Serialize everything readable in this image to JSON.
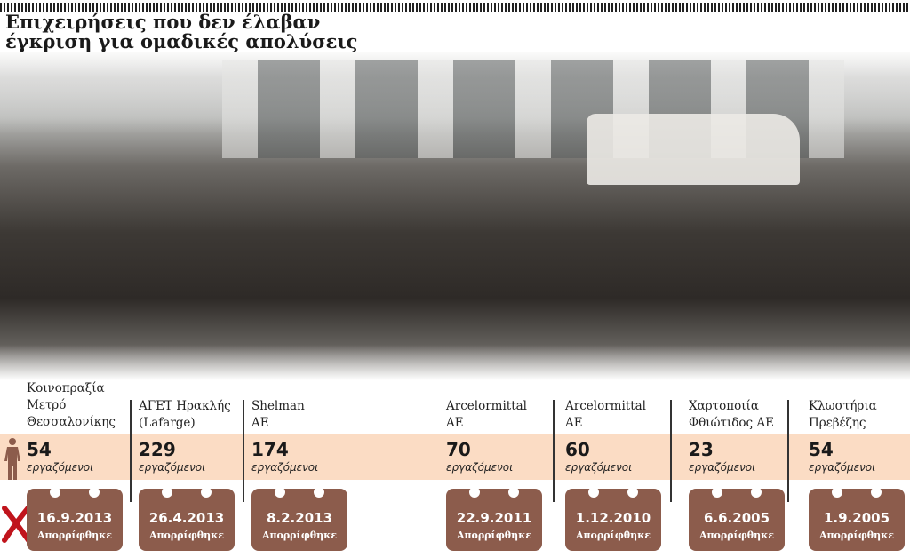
{
  "title": {
    "line1": "Επιχειρήσεις που δεν έλαβαν",
    "line2": "έγκριση για ομαδικές απολύσεις"
  },
  "colors": {
    "band": "#fbdcc4",
    "calendar": "#8c5c4c",
    "reject_mark": "#c0141c",
    "person_icon": "#8c5c4c"
  },
  "icons": {
    "person": "person-icon",
    "reject": "x-mark-icon"
  },
  "companies": [
    {
      "name": [
        "Κοινοπραξία",
        "Μετρό",
        "Θεσσαλονίκης"
      ],
      "workers": "54",
      "unit": "εργαζόμενοι",
      "date": "16.9.2013",
      "status": "Απορρίφθηκε"
    },
    {
      "name": [
        "ΑΓΕΤ Ηρακλής",
        "(Lafarge)"
      ],
      "workers": "229",
      "unit": "εργαζόμενοι",
      "date": "26.4.2013",
      "status": "Απορρίφθηκε"
    },
    {
      "name": [
        "Shelman",
        "ΑΕ"
      ],
      "workers": "174",
      "unit": "εργαζόμενοι",
      "date": "8.2.2013",
      "status": "Απορρίφθηκε"
    },
    {
      "name": [
        "Arcelormittal",
        "ΑΕ"
      ],
      "workers": "70",
      "unit": "εργαζόμενοι",
      "date": "22.9.2011",
      "status": "Απορρίφθηκε"
    },
    {
      "name": [
        "Arcelormittal",
        "ΑΕ"
      ],
      "workers": "60",
      "unit": "εργαζόμενοι",
      "date": "1.12.2010",
      "status": "Απορρίφθηκε"
    },
    {
      "name": [
        "Χαρτοποιία",
        "Φθιώτιδος ΑΕ"
      ],
      "workers": "23",
      "unit": "εργαζόμενοι",
      "date": "6.6.2005",
      "status": "Απορρίφθηκε"
    },
    {
      "name": [
        "Κλωστήρια",
        "Πρεβέζης"
      ],
      "workers": "54",
      "unit": "εργαζόμενοι",
      "date": "1.9.2005",
      "status": "Απορρίφθηκε"
    }
  ]
}
